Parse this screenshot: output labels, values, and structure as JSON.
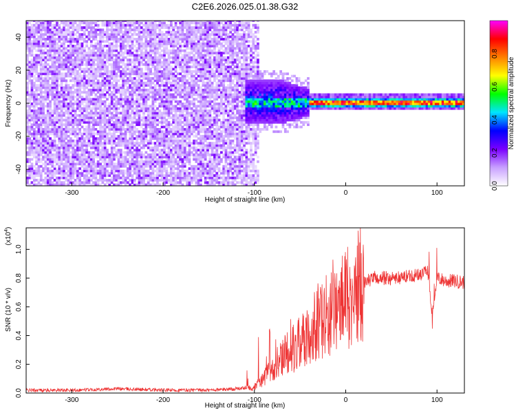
{
  "title": "C2E6.2026.025.01.38.G32",
  "chart_data": [
    {
      "type": "heatmap",
      "xlabel": "Height of straight line (km)",
      "ylabel": "Frequency (Hz)",
      "xlim": [
        -350,
        130
      ],
      "ylim": [
        -50,
        50
      ],
      "x_ticks": [
        -300,
        -200,
        -100,
        0,
        100
      ],
      "x_tick_labels": [
        "-300",
        "-200",
        "-100",
        "0",
        "100"
      ],
      "y_ticks": [
        -40,
        -20,
        0,
        20,
        40
      ],
      "y_tick_labels": [
        "-40",
        "-20",
        "0",
        "20",
        "40"
      ],
      "colorbar": {
        "label": "Normalized spectral amplitude",
        "range": [
          0.0,
          1.0
        ],
        "ticks": [
          0.0,
          0.2,
          0.4,
          0.6,
          0.8
        ],
        "tick_labels": [
          "0.0",
          "0.2",
          "0.4",
          "0.6",
          "0.8"
        ],
        "colors": [
          "#ffffff",
          "#c8a0ff",
          "#7a00ff",
          "#0000ff",
          "#00e5ff",
          "#00ff00",
          "#ffff00",
          "#ff8000",
          "#ff0000",
          "#ff00ff"
        ]
      },
      "regions": [
        {
          "x": [
            -350,
            -95
          ],
          "freq": [
            -50,
            50
          ],
          "amplitude": 0.1,
          "description": "noise"
        },
        {
          "x": [
            -110,
            -40
          ],
          "freq": [
            -10,
            10
          ],
          "amplitude": 0.3
        },
        {
          "x": [
            -40,
            130
          ],
          "freq": [
            -2,
            2
          ],
          "amplitude": 0.7
        }
      ],
      "grid": false
    },
    {
      "type": "line",
      "xlabel": "Height of straight line (km)",
      "ylabel": "SNR (10 * v/v)",
      "y_multiplier": "(x10",
      "y_multiplier_exp": "4",
      "y_multiplier_close": ")",
      "xlim": [
        -350,
        130
      ],
      "ylim": [
        0,
        1.15
      ],
      "x_ticks": [
        -300,
        -200,
        -100,
        0,
        100
      ],
      "x_tick_labels": [
        "-300",
        "-200",
        "-100",
        "0",
        "100"
      ],
      "y_ticks": [
        0.0,
        0.2,
        0.4,
        0.6,
        0.8,
        1.0
      ],
      "y_tick_labels": [
        "0.0",
        "0.2",
        "0.4",
        "0.6",
        "0.8",
        "1.0"
      ],
      "series": [
        {
          "color": "#ee3333",
          "x": [
            -350,
            -300,
            -250,
            -200,
            -150,
            -120,
            -100,
            -90,
            -80,
            -70,
            -60,
            -50,
            -40,
            -30,
            -20,
            -10,
            0,
            10,
            20,
            30,
            40,
            50,
            60,
            70,
            80,
            90,
            95,
            100,
            110,
            120,
            130
          ],
          "y": [
            0.02,
            0.02,
            0.03,
            0.02,
            0.02,
            0.03,
            0.04,
            0.1,
            0.18,
            0.25,
            0.3,
            0.35,
            0.42,
            0.48,
            0.55,
            0.6,
            0.65,
            0.72,
            0.77,
            0.8,
            0.8,
            0.8,
            0.8,
            0.82,
            0.82,
            0.85,
            0.55,
            0.8,
            0.78,
            0.78,
            0.77
          ]
        }
      ],
      "grid": false
    }
  ]
}
